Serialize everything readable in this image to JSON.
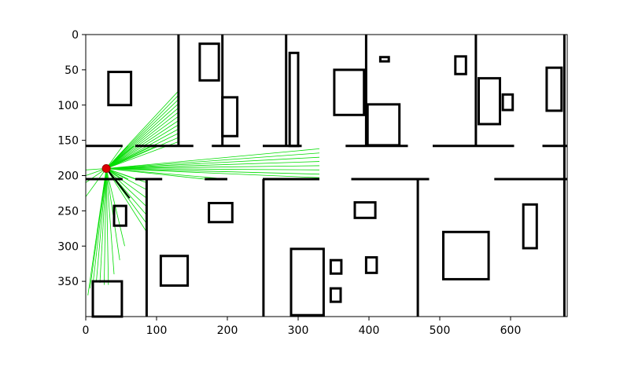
{
  "chart_data": {
    "type": "map",
    "title": "",
    "xlabel": "",
    "ylabel": "",
    "xlim": [
      0,
      680
    ],
    "ylim": [
      400,
      0
    ],
    "x_ticks": [
      0,
      100,
      200,
      300,
      400,
      500,
      600
    ],
    "y_ticks": [
      0,
      50,
      100,
      150,
      200,
      250,
      300,
      350
    ],
    "x_tick_labels": [
      "0",
      "100",
      "200",
      "300",
      "400",
      "500",
      "600"
    ],
    "y_tick_labels": [
      "0",
      "50",
      "100",
      "150",
      "200",
      "250",
      "300",
      "350"
    ],
    "grid": false,
    "colors": {
      "walls": "#000000",
      "rays": "#00dd00",
      "robot": "#dd0000",
      "heading": "#000000",
      "frame": "#000000"
    },
    "robot": {
      "x": 29,
      "y": 190,
      "heading_end": [
        62,
        232
      ]
    },
    "walls": [
      [
        0,
        158,
        52,
        158
      ],
      [
        70,
        158,
        100,
        158
      ],
      [
        92,
        158,
        152,
        158
      ],
      [
        178,
        158,
        218,
        158
      ],
      [
        250,
        158,
        305,
        158
      ],
      [
        367,
        158,
        455,
        158
      ],
      [
        490,
        158,
        605,
        158
      ],
      [
        645,
        158,
        680,
        158
      ],
      [
        0,
        205,
        52,
        205
      ],
      [
        70,
        205,
        108,
        205
      ],
      [
        168,
        205,
        200,
        205
      ],
      [
        250,
        205,
        330,
        205
      ],
      [
        375,
        205,
        485,
        205
      ],
      [
        577,
        205,
        680,
        205
      ],
      [
        131,
        0,
        131,
        158
      ],
      [
        193,
        0,
        193,
        158
      ],
      [
        283,
        0,
        283,
        158
      ],
      [
        396,
        0,
        396,
        158
      ],
      [
        551,
        0,
        551,
        158
      ],
      [
        676,
        0,
        676,
        400
      ],
      [
        86,
        205,
        86,
        400
      ],
      [
        251,
        205,
        251,
        400
      ],
      [
        469,
        205,
        469,
        400
      ]
    ],
    "boxes": [
      [
        32,
        53,
        32,
        47
      ],
      [
        161,
        13,
        27,
        52
      ],
      [
        193,
        89,
        21,
        55
      ],
      [
        288,
        26,
        12,
        132
      ],
      [
        351,
        50,
        42,
        64
      ],
      [
        416,
        32,
        12,
        6
      ],
      [
        522,
        31,
        15,
        25
      ],
      [
        398,
        99,
        45,
        58
      ],
      [
        555,
        62,
        30,
        65
      ],
      [
        589,
        85,
        14,
        22
      ],
      [
        651,
        47,
        21,
        61
      ],
      [
        40,
        243,
        17,
        28
      ],
      [
        174,
        239,
        33,
        27
      ],
      [
        106,
        314,
        38,
        42
      ],
      [
        380,
        238,
        29,
        22
      ],
      [
        290,
        304,
        46,
        94
      ],
      [
        346,
        320,
        15,
        19
      ],
      [
        346,
        360,
        14,
        19
      ],
      [
        396,
        316,
        15,
        22
      ],
      [
        505,
        280,
        64,
        67
      ],
      [
        618,
        241,
        19,
        62
      ],
      [
        10,
        350,
        41,
        50
      ]
    ],
    "ray_origin": [
      29,
      190
    ],
    "ray_ends": [
      [
        131,
        80
      ],
      [
        131,
        86
      ],
      [
        131,
        92
      ],
      [
        131,
        98
      ],
      [
        131,
        104
      ],
      [
        131,
        110
      ],
      [
        131,
        116
      ],
      [
        131,
        122
      ],
      [
        131,
        128
      ],
      [
        131,
        134
      ],
      [
        131,
        140
      ],
      [
        131,
        146
      ],
      [
        131,
        152
      ],
      [
        52,
        158
      ],
      [
        60,
        158
      ],
      [
        68,
        158
      ],
      [
        92,
        158
      ],
      [
        100,
        158
      ],
      [
        330,
        162
      ],
      [
        330,
        168
      ],
      [
        330,
        174
      ],
      [
        330,
        180
      ],
      [
        330,
        186
      ],
      [
        330,
        192
      ],
      [
        330,
        198
      ],
      [
        330,
        203
      ],
      [
        200,
        205
      ],
      [
        168,
        205
      ],
      [
        86,
        280
      ],
      [
        86,
        268
      ],
      [
        86,
        256
      ],
      [
        86,
        244
      ],
      [
        86,
        232
      ],
      [
        86,
        220
      ],
      [
        86,
        210
      ],
      [
        70,
        205
      ],
      [
        60,
        205
      ],
      [
        52,
        205
      ],
      [
        55,
        300
      ],
      [
        48,
        320
      ],
      [
        40,
        340
      ],
      [
        32,
        355
      ],
      [
        26,
        355
      ],
      [
        20,
        352
      ],
      [
        15,
        350
      ],
      [
        10,
        355
      ],
      [
        6,
        360
      ],
      [
        3,
        370
      ],
      [
        0,
        230
      ],
      [
        0,
        210
      ],
      [
        0,
        200
      ],
      [
        0,
        192
      ]
    ]
  }
}
